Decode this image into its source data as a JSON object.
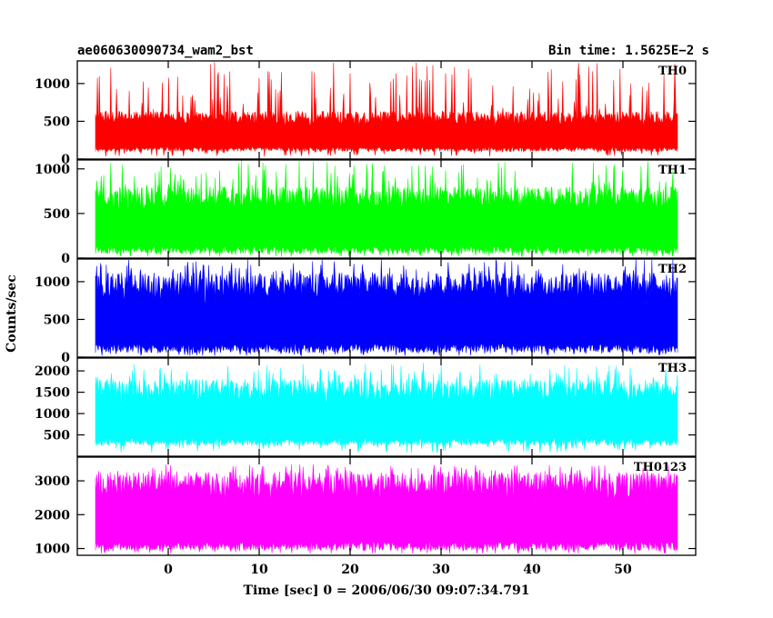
{
  "chart_data": {
    "type": "line",
    "title_left": "ae060630090734_wam2_bst",
    "title_right": "Bin time: 1.5625E−2 s",
    "xlabel": "Time [sec] 0 = 2006/06/30 09:07:34.791",
    "ylabel": "Counts/sec",
    "xlim": [
      -10,
      58
    ],
    "x_data_range": [
      -8,
      56
    ],
    "xticks": [
      0,
      10,
      20,
      30,
      40,
      50
    ],
    "xtick_labels": [
      "0",
      "10",
      "20",
      "30",
      "40",
      "50"
    ],
    "grid": false,
    "panels": [
      {
        "name": "TH0",
        "color": "#ff0000",
        "ylim": [
          0,
          1300
        ],
        "yticks": [
          0,
          500,
          1000
        ],
        "ytick_labels": [
          "0",
          "500",
          "1000"
        ],
        "min": 100,
        "base_high": 600,
        "peak": 1300
      },
      {
        "name": "TH1",
        "color": "#00ff00",
        "ylim": [
          0,
          1100
        ],
        "yticks": [
          0,
          500,
          1000
        ],
        "ytick_labels": [
          "0",
          "500",
          "1000"
        ],
        "min": 50,
        "base_high": 750,
        "peak": 1100
      },
      {
        "name": "TH2",
        "color": "#0000ff",
        "ylim": [
          0,
          1300
        ],
        "yticks": [
          0,
          500,
          1000
        ],
        "ytick_labels": [
          "0",
          "500",
          "1000"
        ],
        "min": 60,
        "base_high": 1050,
        "peak": 1300
      },
      {
        "name": "TH3",
        "color": "#00ffff",
        "ylim": [
          0,
          2300
        ],
        "yticks": [
          500,
          1000,
          1500,
          2000
        ],
        "ytick_labels": [
          "500",
          "1000",
          "1500",
          "2000"
        ],
        "min": 250,
        "base_high": 1700,
        "peak": 2200
      },
      {
        "name": "TH0123",
        "color": "#ff00ff",
        "ylim": [
          800,
          3700
        ],
        "yticks": [
          1000,
          2000,
          3000
        ],
        "ytick_labels": [
          "1000",
          "2000",
          "3000"
        ],
        "min": 950,
        "base_high": 3100,
        "peak": 3500
      }
    ]
  }
}
